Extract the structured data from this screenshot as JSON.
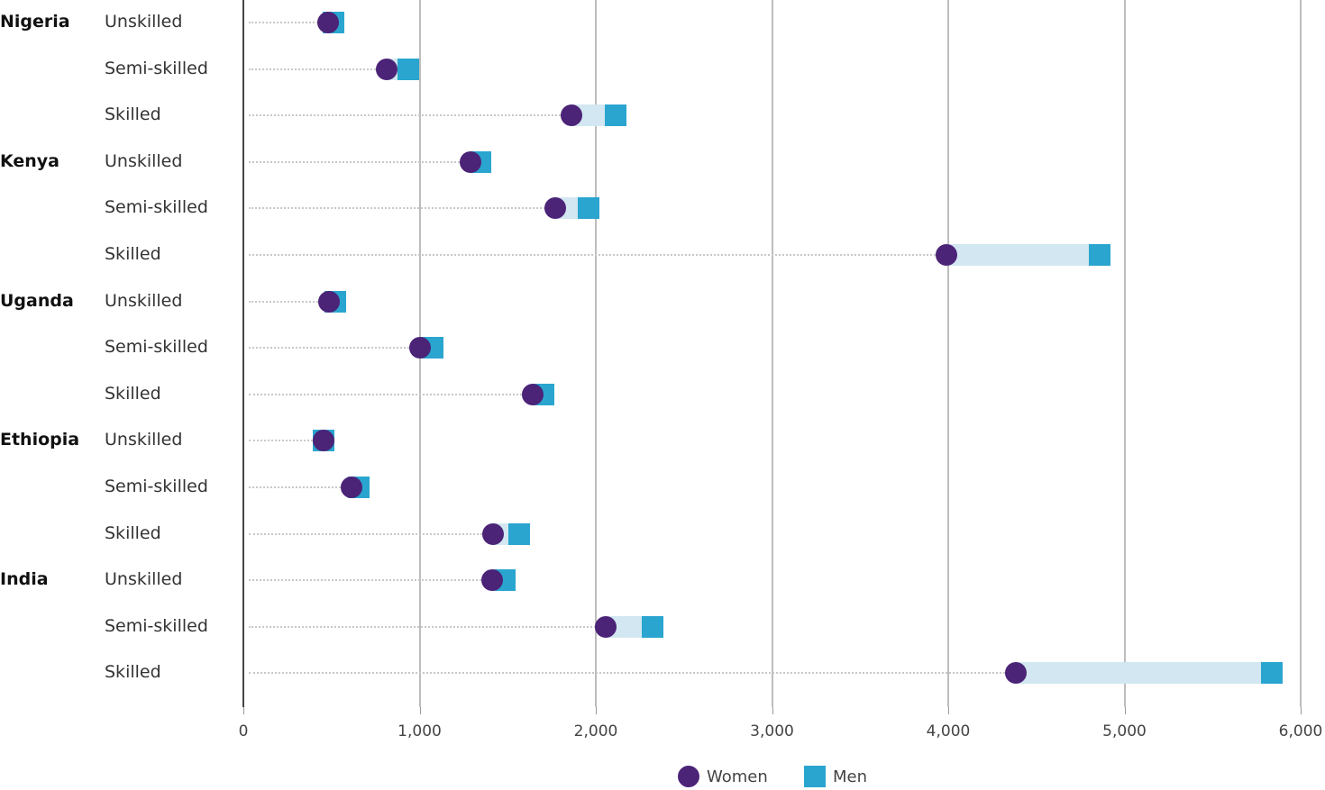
{
  "chart_data": {
    "type": "dumbbell",
    "title": "",
    "xlabel": "",
    "ylabel": "",
    "xlim": [
      0,
      6000
    ],
    "x_ticks": [
      "0",
      "1,000",
      "2,000",
      "3,000",
      "4,000",
      "5,000",
      "6,000"
    ],
    "grid": "vertical",
    "legend": {
      "position": "bottom-center",
      "entries": [
        "Women",
        "Men"
      ]
    },
    "colors": {
      "Women": "#4b2377",
      "Men": "#2aa5cf",
      "gap": "#d2e7f1"
    },
    "rows": [
      {
        "country": "Nigeria",
        "category": "Unskilled",
        "women": 480,
        "men": 510
      },
      {
        "country": "Nigeria",
        "category": "Semi-skilled",
        "women": 815,
        "men": 935
      },
      {
        "country": "Nigeria",
        "category": "Skilled",
        "women": 1860,
        "men": 2110
      },
      {
        "country": "Kenya",
        "category": "Unskilled",
        "women": 1290,
        "men": 1345
      },
      {
        "country": "Kenya",
        "category": "Semi-skilled",
        "women": 1770,
        "men": 1960
      },
      {
        "country": "Kenya",
        "category": "Skilled",
        "women": 3990,
        "men": 4860
      },
      {
        "country": "Uganda",
        "category": "Unskilled",
        "women": 485,
        "men": 520
      },
      {
        "country": "Uganda",
        "category": "Semi-skilled",
        "women": 1000,
        "men": 1075
      },
      {
        "country": "Uganda",
        "category": "Skilled",
        "women": 1640,
        "men": 1705
      },
      {
        "country": "Ethiopia",
        "category": "Unskilled",
        "women": 455,
        "men": 455
      },
      {
        "country": "Ethiopia",
        "category": "Semi-skilled",
        "women": 615,
        "men": 655
      },
      {
        "country": "Ethiopia",
        "category": "Skilled",
        "women": 1415,
        "men": 1565
      },
      {
        "country": "India",
        "category": "Unskilled",
        "women": 1410,
        "men": 1485
      },
      {
        "country": "India",
        "category": "Semi-skilled",
        "women": 2055,
        "men": 2320
      },
      {
        "country": "India",
        "category": "Skilled",
        "women": 4385,
        "men": 5835
      }
    ]
  },
  "labels": {
    "countries": [
      "Nigeria",
      "Kenya",
      "Uganda",
      "Ethiopia",
      "India"
    ],
    "legend_women": "Women",
    "legend_men": "Men"
  }
}
